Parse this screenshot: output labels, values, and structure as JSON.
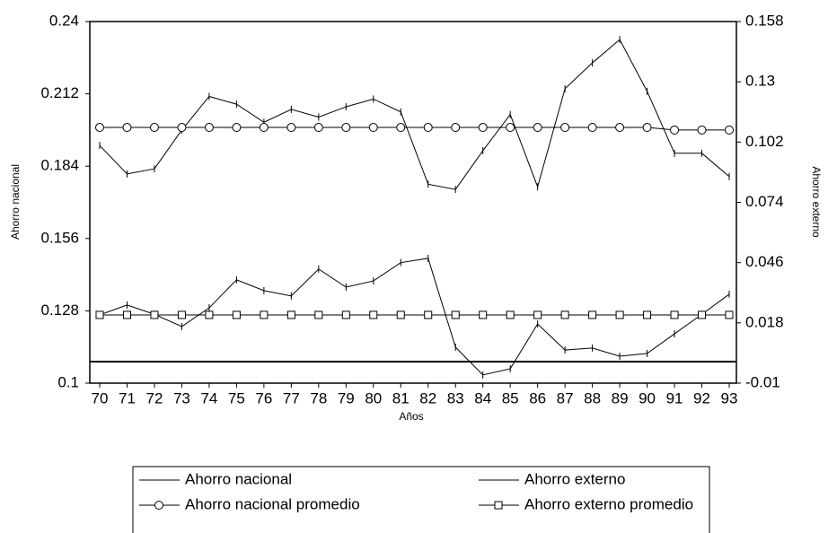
{
  "chart_data": {
    "type": "line",
    "x_label": "Años",
    "y_label": "Ahorro nacional",
    "y2_label": "Ahorro externo",
    "categories": [
      "70",
      "71",
      "72",
      "73",
      "74",
      "75",
      "76",
      "77",
      "78",
      "79",
      "80",
      "81",
      "82",
      "83",
      "84",
      "85",
      "86",
      "87",
      "88",
      "89",
      "90",
      "91",
      "92",
      "93"
    ],
    "ylim": [
      0.1,
      0.24
    ],
    "yticks": [
      0.1,
      0.128,
      0.156,
      0.184,
      0.212,
      0.24
    ],
    "y2lim": [
      -0.01,
      0.158
    ],
    "y2ticks": [
      -0.01,
      0.018,
      0.046,
      0.074,
      0.102,
      0.13,
      0.158
    ],
    "series": [
      {
        "name": "Ahorro nacional",
        "color": "#000000",
        "marker": "plus",
        "values": [
          0.192,
          0.181,
          0.183,
          0.198,
          0.211,
          0.208,
          0.201,
          0.206,
          0.203,
          0.207,
          0.21,
          0.205,
          0.177,
          0.175,
          0.19,
          0.204,
          0.176,
          0.214,
          0.224,
          0.233,
          0.213,
          0.189,
          0.189,
          0.18
        ]
      },
      {
        "name": "Ahorro externo",
        "color": "#000000",
        "marker": "plus",
        "axis": "y2",
        "values": [
          0.0217,
          0.0263,
          0.022,
          0.0163,
          0.025,
          0.038,
          0.033,
          0.0305,
          0.043,
          0.0346,
          0.0375,
          0.046,
          0.048,
          0.0067,
          -0.0062,
          -0.0033,
          0.0175,
          0.0054,
          0.0063,
          0.0025,
          0.0038,
          0.0129,
          0.022,
          0.0313
        ]
      },
      {
        "name": "Ahorro nacional promedio",
        "color": "#000000",
        "marker": "circle",
        "values": [
          0.199,
          0.199,
          0.199,
          0.199,
          0.199,
          0.199,
          0.199,
          0.199,
          0.199,
          0.199,
          0.199,
          0.199,
          0.199,
          0.199,
          0.199,
          0.199,
          0.199,
          0.199,
          0.199,
          0.199,
          0.199,
          0.198,
          0.198,
          0.198
        ]
      },
      {
        "name": "Ahorro externo promedio",
        "color": "#000000",
        "marker": "square",
        "axis": "y2",
        "values": [
          0.0217,
          0.0217,
          0.0217,
          0.0217,
          0.0217,
          0.0217,
          0.0217,
          0.0217,
          0.0217,
          0.0217,
          0.0217,
          0.0217,
          0.0217,
          0.0217,
          0.0217,
          0.0217,
          0.0217,
          0.0217,
          0.0217,
          0.0217,
          0.0217,
          0.0217,
          0.0217,
          0.0217
        ]
      }
    ]
  }
}
